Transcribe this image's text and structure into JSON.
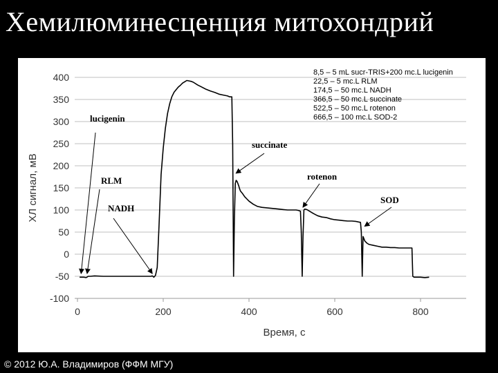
{
  "slide": {
    "title": "Хемилюминесценция митохондрий",
    "footer": "© 2012 Ю.А. Владимиров (ФФМ МГУ)"
  },
  "colors": {
    "background": "#000000",
    "panel": "#ffffff",
    "ink": "#000000",
    "grid": "#bfbfbf"
  },
  "chart_data": {
    "type": "line",
    "title": "",
    "xlabel": "Время, с",
    "ylabel": "ХЛ сигнал, мВ",
    "xlim": [
      0,
      840
    ],
    "ylim": [
      -100,
      400
    ],
    "xticks": [
      0,
      200,
      400,
      600,
      800
    ],
    "yticks": [
      400,
      350,
      300,
      250,
      200,
      150,
      100,
      50,
      0,
      -50,
      -100
    ],
    "grid": "horizontal",
    "legend_text": [
      "8,5 – 5 mL sucr-TRIS+200 mc.L lucigenin",
      "22,5 – 5 mc.L RLM",
      "174,5 – 50 mc.L NADH",
      "366,5 – 50 mc.L succinate",
      "522,5 – 50 mc.L rotenon",
      "666,5 – 100 mc.L SOD-2"
    ],
    "annotations": [
      {
        "text": "lucigenin",
        "x": 8.5,
        "y": -50
      },
      {
        "text": "RLM",
        "x": 22.5,
        "y": -50
      },
      {
        "text": "NADH",
        "x": 174.5,
        "y": -50
      },
      {
        "text": "succinate",
        "x": 366.5,
        "y": 180
      },
      {
        "text": "rotenon",
        "x": 522.5,
        "y": 103
      },
      {
        "text": "SOD",
        "x": 666.5,
        "y": 60
      }
    ],
    "series": [
      {
        "x": [
          5,
          10,
          15,
          20,
          22,
          25,
          30,
          40,
          60,
          80,
          100,
          120,
          140,
          160,
          172,
          174,
          176,
          178,
          182,
          186,
          190,
          195,
          200,
          205,
          210,
          215,
          220,
          225,
          230,
          235,
          240,
          245,
          250,
          255,
          260,
          265,
          270,
          280,
          290,
          300,
          310,
          320,
          330,
          340,
          350,
          355,
          360,
          362,
          364,
          366,
          368,
          370,
          372,
          374,
          376,
          378,
          380,
          385,
          390,
          395,
          400,
          410,
          420,
          430,
          440,
          450,
          460,
          470,
          480,
          490,
          500,
          510,
          515,
          518,
          520,
          522,
          524,
          526,
          528,
          530,
          535,
          540,
          550,
          560,
          570,
          580,
          590,
          600,
          610,
          620,
          630,
          640,
          650,
          655,
          660,
          662,
          664,
          666,
          668,
          670,
          672,
          675,
          680,
          690,
          700,
          710,
          720,
          730,
          740,
          750,
          760,
          770,
          778,
          780,
          782,
          785,
          790,
          800,
          810,
          820
        ],
        "y": [
          -52,
          -52,
          -52,
          -53,
          -52,
          -50,
          -50,
          -49,
          -50,
          -50,
          -50,
          -50,
          -50,
          -50,
          -50,
          -49,
          -50,
          -52,
          -48,
          -30,
          60,
          180,
          240,
          285,
          318,
          340,
          356,
          366,
          372,
          378,
          382,
          387,
          390,
          393,
          392,
          391,
          389,
          383,
          378,
          373,
          369,
          366,
          362,
          360,
          358,
          356,
          356,
          250,
          -50,
          80,
          160,
          167,
          165,
          160,
          155,
          148,
          143,
          137,
          130,
          125,
          120,
          113,
          108,
          106,
          105,
          104,
          103,
          102,
          101,
          100,
          100,
          100,
          99,
          98,
          97,
          50,
          -50,
          40,
          100,
          102,
          101,
          98,
          92,
          87,
          84,
          83,
          80,
          78,
          77,
          76,
          75,
          75,
          74,
          73,
          72,
          50,
          -50,
          40,
          35,
          30,
          28,
          25,
          22,
          20,
          18,
          16,
          16,
          15,
          15,
          14,
          14,
          14,
          14,
          14,
          -50,
          -52,
          -52,
          -52,
          -53,
          -52
        ]
      }
    ]
  }
}
